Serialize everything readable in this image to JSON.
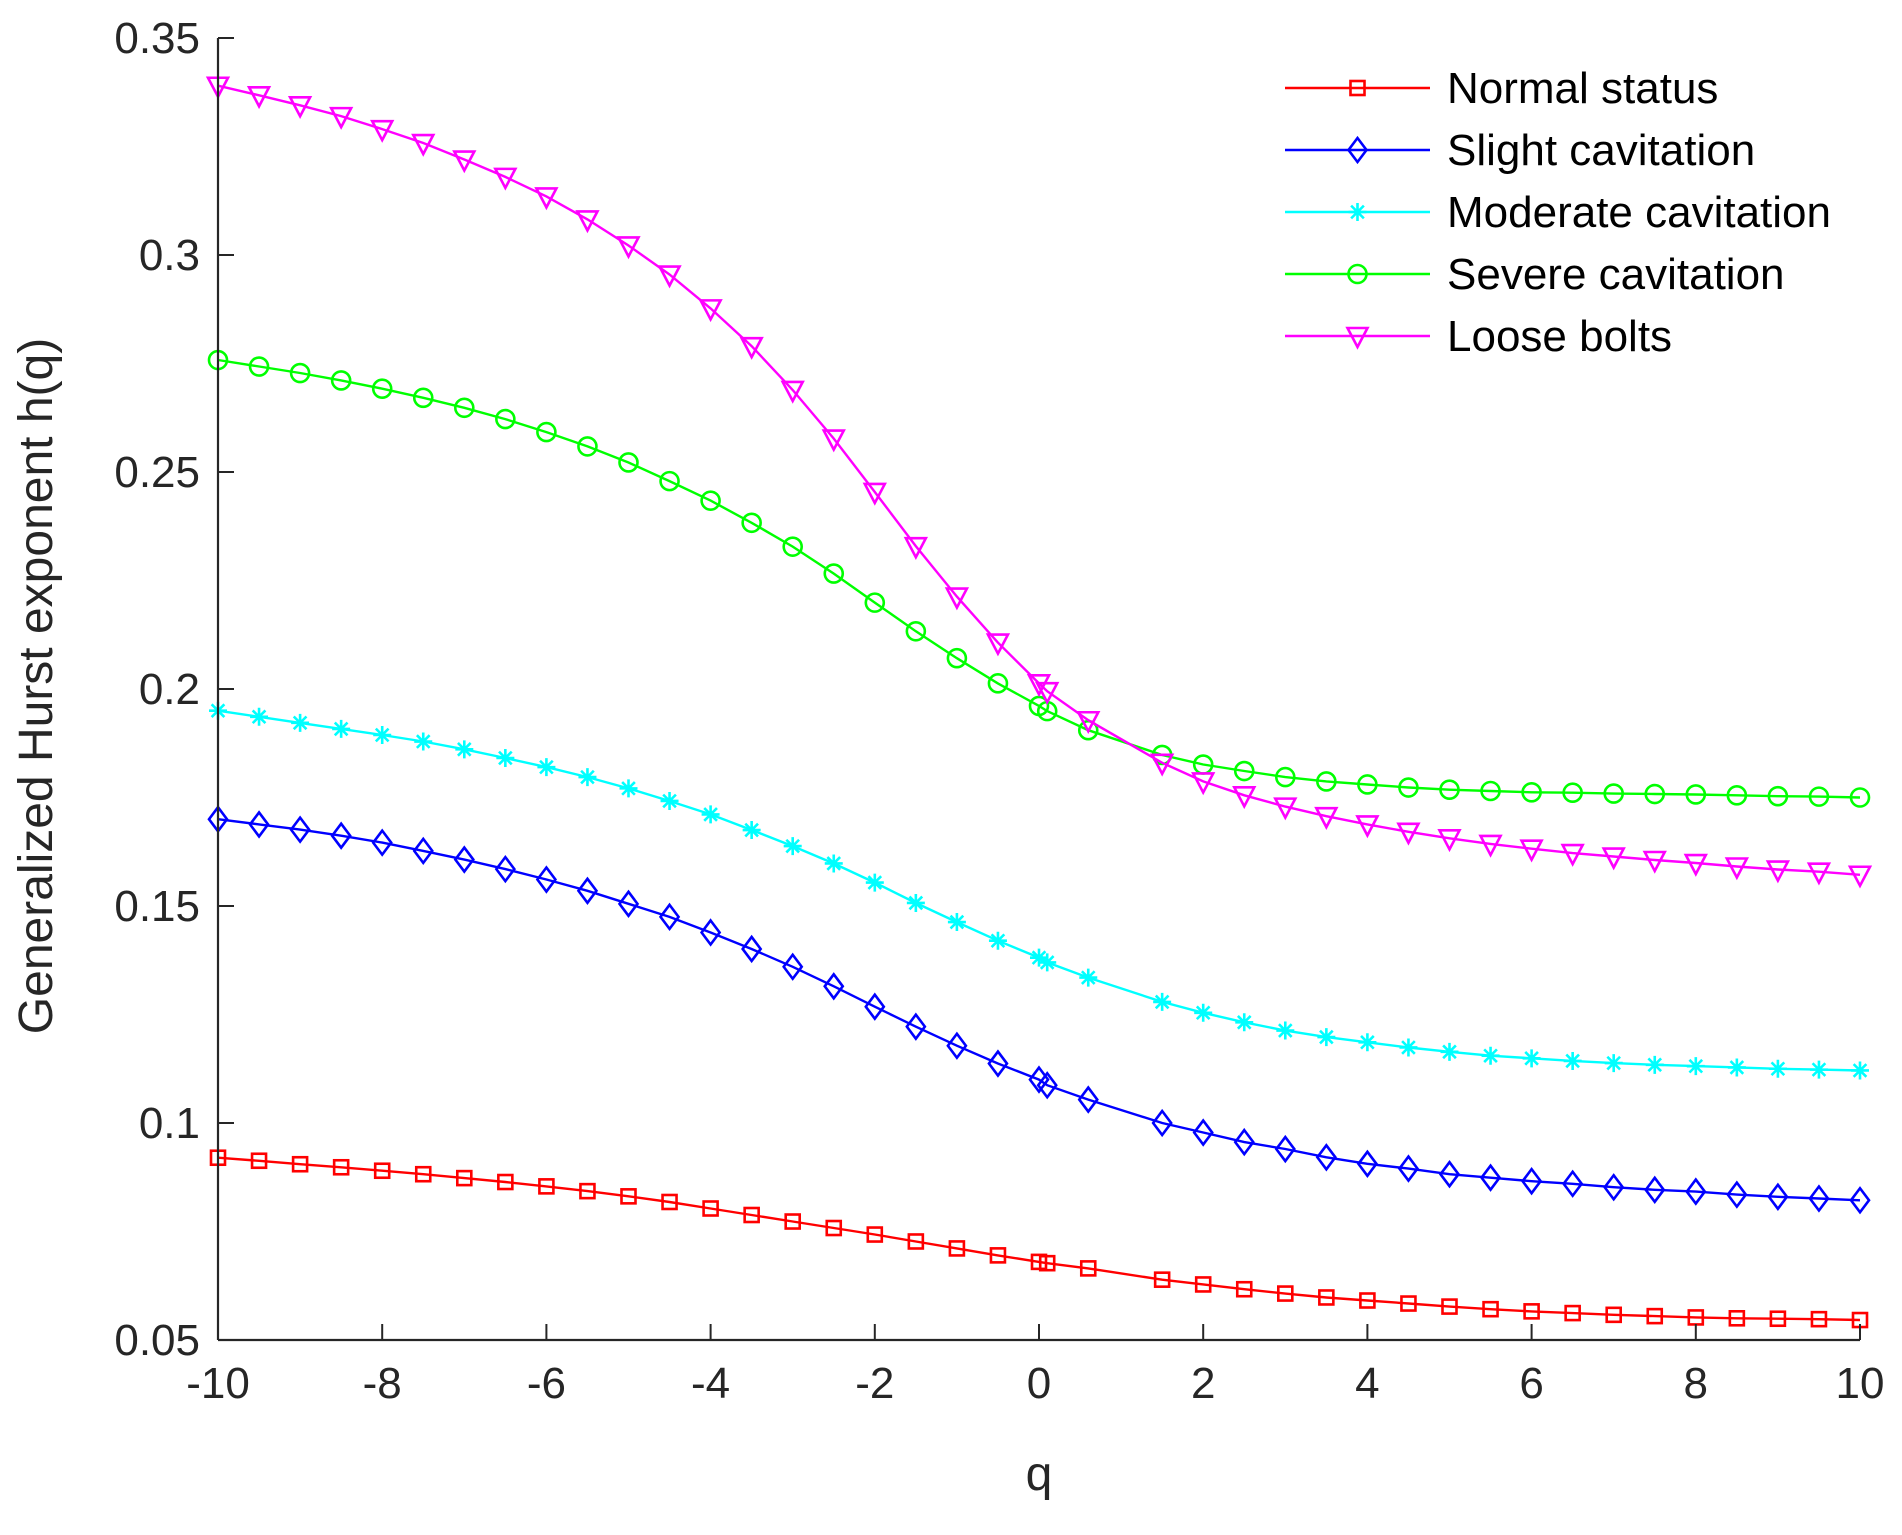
{
  "chart_data": {
    "type": "line",
    "title": "",
    "xlabel": "q",
    "ylabel": "Generalized Hurst exponent h(q)",
    "xlim": [
      -10,
      10
    ],
    "ylim": [
      0.05,
      0.35
    ],
    "xticks": [
      -10,
      -8,
      -6,
      -4,
      -2,
      0,
      2,
      4,
      6,
      8,
      10
    ],
    "xtick_labels": [
      "-10",
      "-8",
      "-6",
      "-4",
      "-2",
      "0",
      "2",
      "4",
      "6",
      "8",
      "10"
    ],
    "yticks": [
      0.05,
      0.1,
      0.15,
      0.2,
      0.25,
      0.3,
      0.35
    ],
    "ytick_labels": [
      "0.05",
      "0.1",
      "0.15",
      "0.2",
      "0.25",
      "0.3",
      "0.35"
    ],
    "grid": false,
    "legend_position": "top-right",
    "x": [
      -10,
      -9.5,
      -9,
      -8.5,
      -8,
      -7.5,
      -7,
      -6.5,
      -6,
      -5.5,
      -5,
      -4.5,
      -4,
      -3.5,
      -3,
      -2.5,
      -2,
      -1.5,
      -1,
      -0.5,
      0,
      0.1,
      0.6,
      1.5,
      2,
      2.5,
      3,
      3.5,
      4,
      4.5,
      5,
      5.5,
      6,
      6.5,
      7,
      7.5,
      8,
      8.5,
      9,
      9.5,
      10
    ],
    "series": [
      {
        "name": "Normal status",
        "color": "#ff0000",
        "marker": "square",
        "values": [
          0.092,
          0.0913,
          0.0905,
          0.0898,
          0.089,
          0.0882,
          0.0873,
          0.0864,
          0.0854,
          0.0843,
          0.0831,
          0.0818,
          0.0803,
          0.0788,
          0.0773,
          0.0758,
          0.0743,
          0.0727,
          0.0711,
          0.0695,
          0.068,
          0.0677,
          0.0665,
          0.0639,
          0.0628,
          0.0617,
          0.0607,
          0.0598,
          0.0591,
          0.0584,
          0.0577,
          0.0571,
          0.0566,
          0.0562,
          0.0558,
          0.0555,
          0.0552,
          0.055,
          0.0549,
          0.0548,
          0.0546
        ]
      },
      {
        "name": "Slight cavitation",
        "color": "#0000ff",
        "marker": "diamond",
        "values": [
          0.17,
          0.1688,
          0.1676,
          0.1662,
          0.1646,
          0.1627,
          0.1607,
          0.1585,
          0.1561,
          0.1535,
          0.1505,
          0.1475,
          0.1439,
          0.1401,
          0.136,
          0.1315,
          0.1268,
          0.1222,
          0.1178,
          0.1137,
          0.11,
          0.1087,
          0.1054,
          0.1,
          0.0978,
          0.0956,
          0.094,
          0.0921,
          0.0906,
          0.0895,
          0.0882,
          0.0874,
          0.0866,
          0.086,
          0.0852,
          0.0846,
          0.0842,
          0.0835,
          0.083,
          0.0826,
          0.0822
        ]
      },
      {
        "name": "Moderate cavitation",
        "color": "#00ffff",
        "marker": "asterisk",
        "values": [
          0.195,
          0.1936,
          0.1922,
          0.1908,
          0.1894,
          0.1879,
          0.1861,
          0.1841,
          0.182,
          0.1797,
          0.1771,
          0.1742,
          0.1711,
          0.1675,
          0.1638,
          0.1598,
          0.1554,
          0.1507,
          0.1463,
          0.142,
          0.1381,
          0.137,
          0.1335,
          0.1279,
          0.1254,
          0.1232,
          0.1213,
          0.1198,
          0.1186,
          0.1174,
          0.1164,
          0.1155,
          0.1149,
          0.1143,
          0.1138,
          0.1134,
          0.1131,
          0.1128,
          0.1125,
          0.1123,
          0.1121
        ]
      },
      {
        "name": "Severe cavitation",
        "color": "#00ff00",
        "marker": "circle",
        "values": [
          0.2758,
          0.2743,
          0.2728,
          0.2711,
          0.2692,
          0.2671,
          0.2648,
          0.2622,
          0.2592,
          0.2559,
          0.2522,
          0.2479,
          0.2434,
          0.2383,
          0.2328,
          0.2266,
          0.2199,
          0.2133,
          0.2071,
          0.2013,
          0.1961,
          0.1949,
          0.1905,
          0.1848,
          0.1826,
          0.1811,
          0.1797,
          0.1787,
          0.178,
          0.1773,
          0.1768,
          0.1765,
          0.1762,
          0.1761,
          0.1759,
          0.1758,
          0.1757,
          0.1755,
          0.1753,
          0.1752,
          0.175
        ]
      },
      {
        "name": "Loose bolts",
        "color": "#ff00ff",
        "marker": "triangle-down",
        "values": [
          0.339,
          0.3368,
          0.3345,
          0.332,
          0.329,
          0.3258,
          0.322,
          0.318,
          0.3135,
          0.3082,
          0.3022,
          0.2955,
          0.2877,
          0.279,
          0.2689,
          0.2577,
          0.2454,
          0.2329,
          0.2213,
          0.2107,
          0.2013,
          0.1995,
          0.1928,
          0.183,
          0.1787,
          0.1755,
          0.1729,
          0.1707,
          0.1688,
          0.1671,
          0.1656,
          0.1643,
          0.1632,
          0.1622,
          0.1614,
          0.1606,
          0.1599,
          0.1591,
          0.1584,
          0.1579,
          0.1572
        ]
      }
    ]
  }
}
